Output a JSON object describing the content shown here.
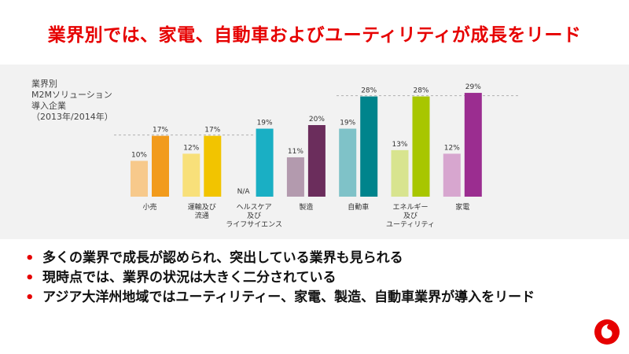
{
  "slide": {
    "title": "業界別では、家電、自動車およびユーティリティが成長をリード"
  },
  "chart_data": {
    "type": "bar",
    "title_lines": [
      "業界別",
      "M2Mソリューション",
      "導入企業",
      "（2013年/2014年）"
    ],
    "categories": [
      [
        "小売"
      ],
      [
        "運輸及び",
        "流通"
      ],
      [
        "ヘルスケア",
        "及び",
        "ライフサイエンス"
      ],
      [
        "製造"
      ],
      [
        "自動車"
      ],
      [
        "エネルギー",
        "及び",
        "ユーティリティ"
      ],
      [
        "家電"
      ]
    ],
    "series": [
      {
        "name": "",
        "values": [
          10,
          12,
          null,
          11,
          19,
          13,
          12
        ],
        "labels": [
          "10%",
          "12%",
          "N/A",
          "11%",
          "19%",
          "13%",
          "12%"
        ]
      },
      {
        "name": "",
        "values": [
          17,
          17,
          19,
          20,
          28,
          28,
          29
        ],
        "labels": [
          "17%",
          "17%",
          "19%",
          "20%",
          "28%",
          "28%",
          "29%"
        ]
      }
    ],
    "colors": [
      [
        "#f7c98b",
        "#f29b1c"
      ],
      [
        "#f8e07a",
        "#f2c400"
      ],
      [
        "#a9dbe3",
        "#1aafc4"
      ],
      [
        "#b39aae",
        "#6b2d5c"
      ],
      [
        "#7fc2c8",
        "#00848c"
      ],
      [
        "#d8e48f",
        "#a8c600"
      ],
      [
        "#d7a6cf",
        "#9b2d90"
      ]
    ],
    "reference_lines": [
      17,
      28
    ],
    "ylim": [
      0,
      32
    ]
  },
  "bullets": [
    "多くの業界で成長が認められ、突出している業界も見られる",
    "現時点では、業界の状況は大きく二分されている",
    "アジア大洋州地域ではユーティリティー、家電、製造、自動車業界が導入をリード"
  ],
  "logo": {
    "name": "vodafone-logo",
    "color": "#e60000"
  }
}
